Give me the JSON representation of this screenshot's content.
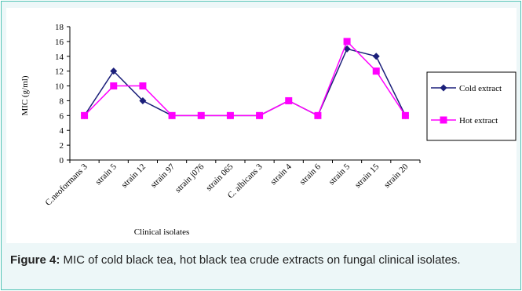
{
  "chart_data": {
    "type": "line",
    "categories": [
      "C.neoformans 3",
      "strain 5",
      "strain 12",
      "strain 97",
      "strain j076",
      "strain 065",
      "C. albicans 3",
      "strain 4",
      "strain 6",
      "strain 5",
      "strain 15",
      "strain 20"
    ],
    "series": [
      {
        "name": "Cold extract",
        "color": "#1b1f7a",
        "marker": "diamond",
        "values": [
          6,
          12,
          8,
          6,
          6,
          6,
          6,
          8,
          6,
          15,
          14,
          6
        ]
      },
      {
        "name": "Hot extract",
        "color": "#ff00ff",
        "marker": "square",
        "values": [
          6,
          10,
          10,
          6,
          6,
          6,
          6,
          8,
          6,
          16,
          12,
          6
        ]
      }
    ],
    "xlabel": "Clinical isolates",
    "ylabel": "MIC (g/ml)",
    "ylim": [
      0,
      18
    ],
    "yticks": [
      0,
      2,
      4,
      6,
      8,
      10,
      12,
      14,
      16,
      18
    ],
    "legend_position": "right",
    "grid": false
  },
  "caption": {
    "label": "Figure 4:",
    "text": " MIC of cold black tea, hot black tea crude extracts on fungal clinical isolates."
  }
}
